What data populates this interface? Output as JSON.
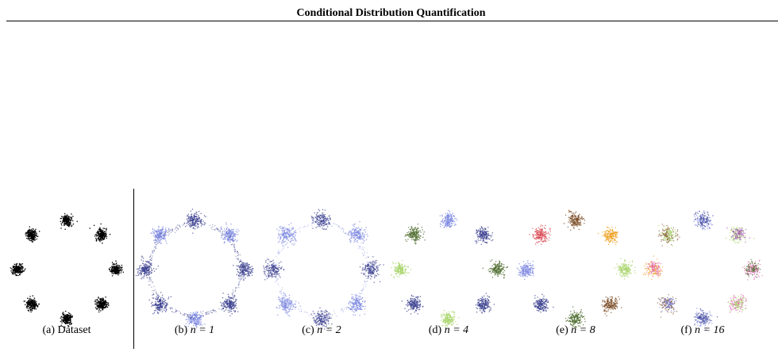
{
  "header": {
    "title": "Conditional Distribution Quantification"
  },
  "figure": {
    "panels": [
      {
        "id": "a",
        "caption_prefix": "(a) Dataset",
        "caption_math": ""
      },
      {
        "id": "b",
        "caption_prefix": "(b) ",
        "caption_math": "n = 1"
      },
      {
        "id": "c",
        "caption_prefix": "(c) ",
        "caption_math": "n = 2"
      },
      {
        "id": "d",
        "caption_prefix": "(d) ",
        "caption_math": "n = 4"
      },
      {
        "id": "e",
        "caption_prefix": "(e) ",
        "caption_math": "n = 8"
      },
      {
        "id": "f",
        "caption_prefix": "(f) ",
        "caption_math": "n = 16"
      }
    ],
    "colors": {
      "dataset": "#000000",
      "dark_blue": "#3a3f8f",
      "light_blue": "#7b86e0",
      "dark_green": "#4a6a2a",
      "light_green": "#a8d46a",
      "red": "#d9454f",
      "brown": "#7a4a22",
      "orange": "#f0a020",
      "pink": "#e060b0",
      "purple": "#9a4ab0"
    }
  }
}
